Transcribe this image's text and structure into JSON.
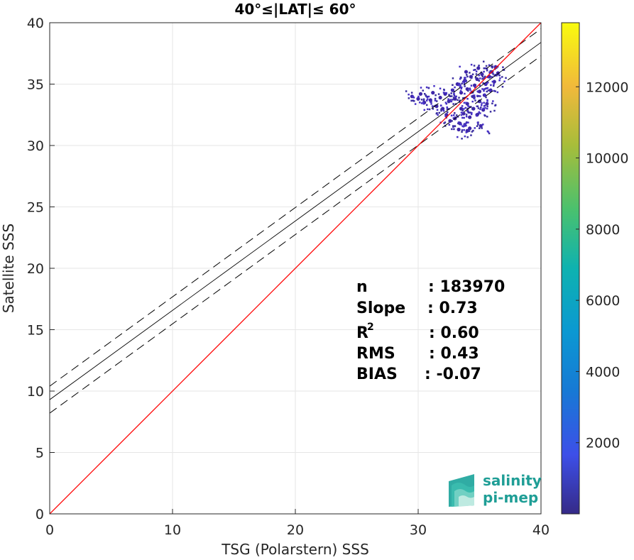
{
  "chart_data": {
    "type": "scatter",
    "title": "40°≤|LAT|≤ 60°",
    "xlabel": "TSG (Polarstern) SSS",
    "ylabel": "Satellite SSS",
    "xlim": [
      0,
      40
    ],
    "ylim": [
      0,
      40
    ],
    "xticks": [
      "0",
      "10",
      "20",
      "30",
      "40"
    ],
    "yticks": [
      "0",
      "5",
      "10",
      "15",
      "20",
      "25",
      "30",
      "35",
      "40"
    ],
    "grid": true,
    "reference_line": {
      "name": "1:1",
      "color": "#ff0000",
      "x": [
        0,
        40
      ],
      "y": [
        0,
        40
      ]
    },
    "regression": {
      "color": "#000000",
      "x": [
        0,
        40
      ],
      "y": [
        9.3,
        38.4
      ]
    },
    "confidence_upper": {
      "color": "#000000",
      "style": "dashed",
      "x": [
        0,
        40
      ],
      "y": [
        10.4,
        39.5
      ]
    },
    "confidence_lower": {
      "color": "#000000",
      "style": "dashed",
      "x": [
        0,
        40
      ],
      "y": [
        8.2,
        37.3
      ]
    },
    "density_cloud": {
      "description_colormap": "parula",
      "points": [
        [
          29.5,
          34.0
        ],
        [
          30.0,
          33.8
        ],
        [
          30.5,
          33.5
        ],
        [
          31.0,
          33.7
        ],
        [
          31.5,
          33.2
        ],
        [
          31.8,
          33.9
        ],
        [
          32.0,
          33.0
        ],
        [
          32.3,
          32.5
        ],
        [
          32.5,
          33.6
        ],
        [
          32.8,
          34.5
        ],
        [
          33.0,
          32.2
        ],
        [
          33.0,
          33.8
        ],
        [
          33.2,
          35.0
        ],
        [
          33.4,
          31.8
        ],
        [
          33.5,
          33.0
        ],
        [
          33.5,
          34.3
        ],
        [
          33.7,
          32.6
        ],
        [
          33.8,
          35.3
        ],
        [
          34.0,
          33.4
        ],
        [
          34.0,
          34.6
        ],
        [
          34.2,
          31.4
        ],
        [
          34.2,
          32.3
        ],
        [
          34.3,
          35.6
        ],
        [
          34.5,
          33.0
        ],
        [
          34.5,
          34.0
        ],
        [
          34.6,
          34.9
        ],
        [
          34.8,
          32.5
        ],
        [
          34.8,
          35.4
        ],
        [
          35.0,
          33.6
        ],
        [
          35.0,
          34.4
        ],
        [
          35.1,
          31.6
        ],
        [
          35.2,
          35.8
        ],
        [
          35.3,
          32.9
        ],
        [
          35.4,
          34.1
        ],
        [
          35.5,
          35.0
        ],
        [
          35.6,
          33.4
        ],
        [
          35.8,
          35.6
        ],
        [
          35.9,
          34.5
        ],
        [
          36.0,
          36.0
        ],
        [
          36.2,
          35.2
        ],
        [
          36.3,
          36.4
        ],
        [
          36.5,
          35.9
        ],
        [
          33.3,
          31.3
        ],
        [
          34.0,
          31.2
        ],
        [
          32.6,
          32.0
        ],
        [
          32.2,
          34.2
        ],
        [
          31.2,
          34.3
        ],
        [
          30.2,
          34.2
        ],
        [
          33.9,
          36.0
        ],
        [
          34.9,
          36.3
        ]
      ]
    },
    "colorbar": {
      "range": [
        0,
        13800
      ],
      "ticks": [
        "2000",
        "4000",
        "6000",
        "8000",
        "10000",
        "12000"
      ],
      "tick_values": [
        2000,
        4000,
        6000,
        8000,
        10000,
        12000
      ],
      "colormap": "parula"
    },
    "stats": [
      {
        "label": "n",
        "value": ": 183970"
      },
      {
        "label": "Slope",
        "value": ": 0.73"
      },
      {
        "label": "R",
        "sup": "2",
        "value": ": 0.60"
      },
      {
        "label": "RMS",
        "value": ": 0.43"
      },
      {
        "label": "BIAS",
        "value": ": -0.07"
      }
    ]
  },
  "logo": {
    "line1": "salinity",
    "line2": "pi-mep"
  }
}
